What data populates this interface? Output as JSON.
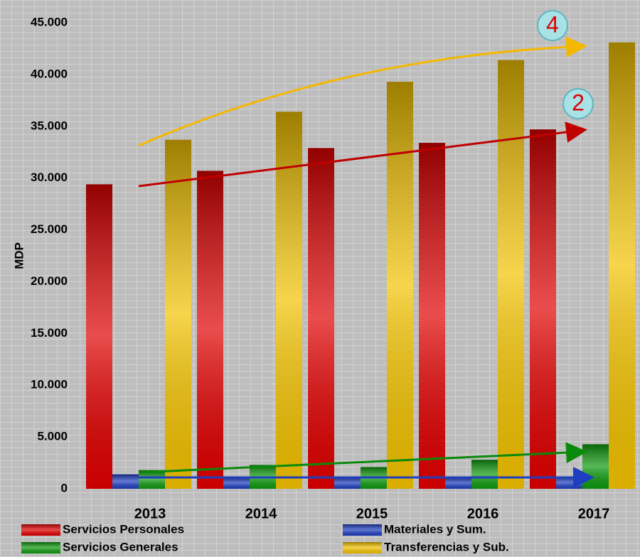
{
  "chart_data": {
    "type": "bar",
    "y_label": "MDP",
    "categories": [
      "2013",
      "2014",
      "2015",
      "2016",
      "2017"
    ],
    "series": [
      {
        "name": "Servicios Personales",
        "color": "#e00000",
        "values": [
          29400,
          30700,
          32900,
          33400,
          34700
        ]
      },
      {
        "name": "Materiales y Sum.",
        "color": "#1f3fc0",
        "values": [
          1400,
          1100,
          1100,
          1100,
          1200
        ]
      },
      {
        "name": "Servicios Generales",
        "color": "#0f9a0f",
        "values": [
          1800,
          2300,
          2100,
          2800,
          4300
        ]
      },
      {
        "name": "Transferencias y Sub.",
        "color": "#f2c200",
        "values": [
          33700,
          36400,
          39300,
          41400,
          43100
        ]
      }
    ],
    "annotations": [
      "4",
      "2"
    ],
    "ylim": [
      0,
      45000
    ],
    "yticks": [
      0,
      {
        "value": 5000,
        "label": "5.000"
      },
      {
        "value": 10000,
        "label": "10.000"
      },
      {
        "value": 15000,
        "label": "15.000"
      },
      {
        "value": 20000,
        "label": "20.000"
      },
      {
        "value": 25000,
        "label": "25.000"
      },
      {
        "value": 30000,
        "label": "30.000"
      },
      {
        "value": 35000,
        "label": "35.000"
      },
      {
        "value": 40000,
        "label": "40.000"
      },
      {
        "value": 45000,
        "label": "45.000"
      }
    ],
    "grid": false
  }
}
